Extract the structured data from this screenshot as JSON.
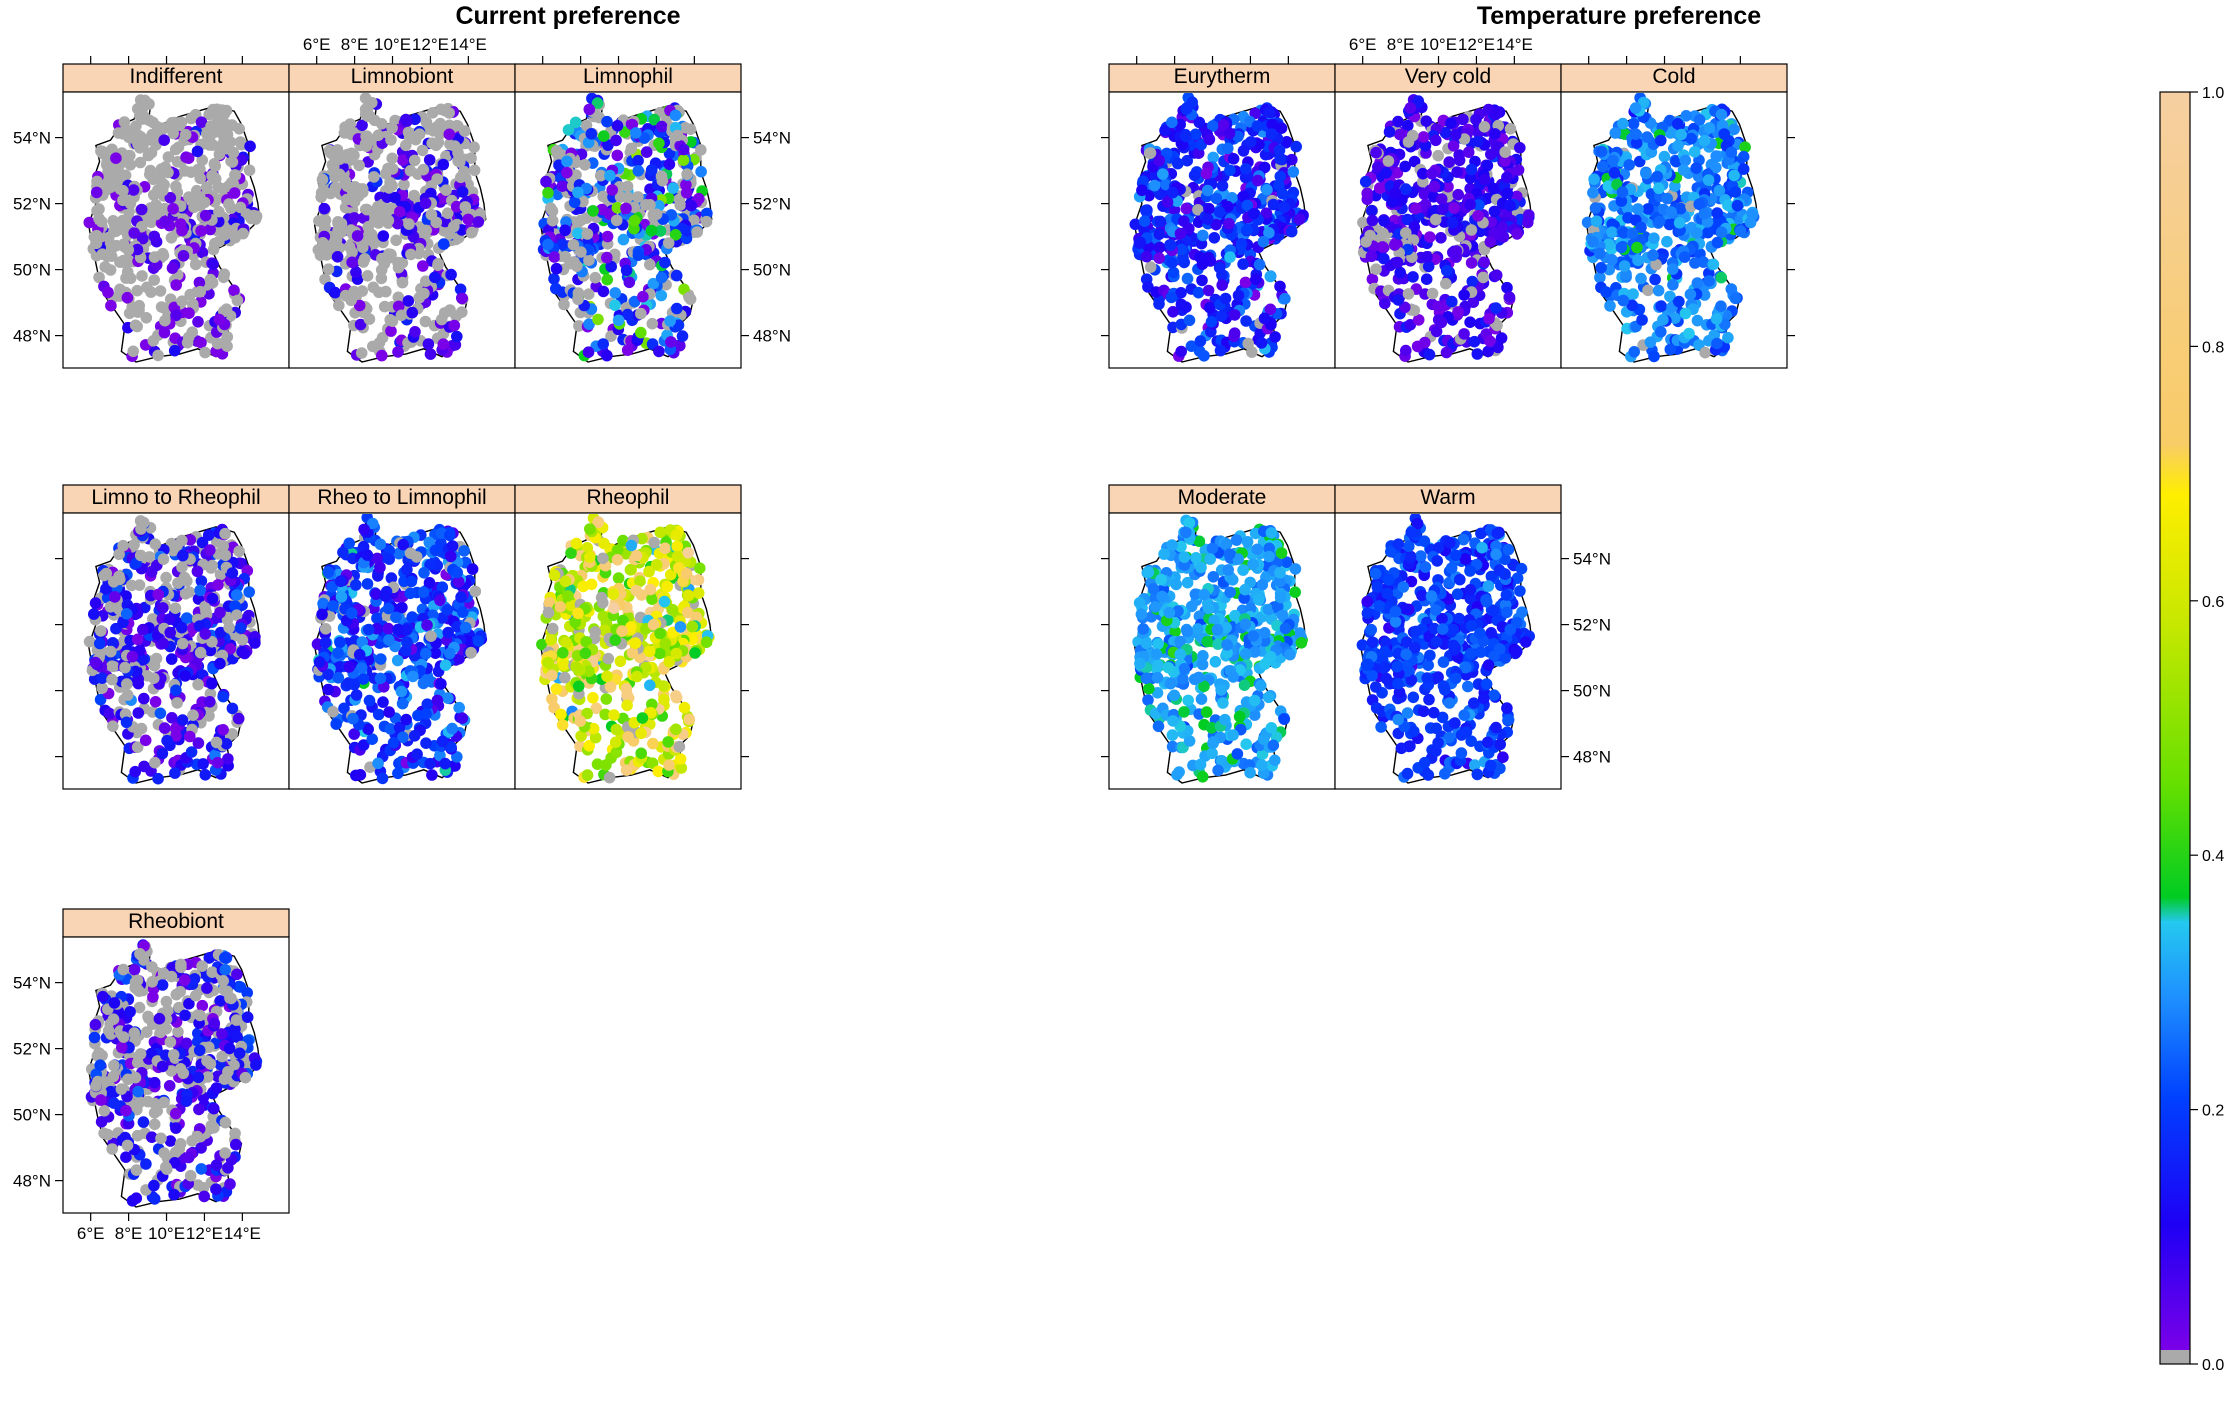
{
  "figure": {
    "groups": [
      {
        "title": "Current preference",
        "panels": [
          {
            "label": "Indifferent",
            "mean": 0.03,
            "spread": 0.05,
            "gray_share": 0.62
          },
          {
            "label": "Limnobiont",
            "mean": 0.06,
            "spread": 0.06,
            "gray_share": 0.55
          },
          {
            "label": "Limnophil",
            "mean": 0.18,
            "spread": 0.14,
            "gray_share": 0.3
          },
          {
            "label": "Limno to Rheophil",
            "mean": 0.1,
            "spread": 0.07,
            "gray_share": 0.3
          },
          {
            "label": "Rheo to Limnophil",
            "mean": 0.17,
            "spread": 0.08,
            "gray_share": 0.05
          },
          {
            "label": "Rheophil",
            "mean": 0.62,
            "spread": 0.14,
            "gray_share": 0.05
          },
          {
            "label": "Rheobiont",
            "mean": 0.1,
            "spread": 0.07,
            "gray_share": 0.4
          }
        ]
      },
      {
        "title": "Temperature preference",
        "panels": [
          {
            "label": "Eurytherm",
            "mean": 0.15,
            "spread": 0.07,
            "gray_share": 0.02
          },
          {
            "label": "Very cold",
            "mean": 0.07,
            "spread": 0.05,
            "gray_share": 0.15
          },
          {
            "label": "Cold",
            "mean": 0.26,
            "spread": 0.05,
            "gray_share": 0.03
          },
          {
            "label": "Moderate",
            "mean": 0.3,
            "spread": 0.04,
            "gray_share": 0.0
          },
          {
            "label": "Warm",
            "mean": 0.19,
            "spread": 0.05,
            "gray_share": 0.0
          }
        ]
      }
    ],
    "x_ticks": [
      "6°E",
      "8°E",
      "10°E",
      "12°E",
      "14°E"
    ],
    "x_tick_values": [
      6,
      8,
      10,
      12,
      14
    ],
    "y_ticks": [
      "48°N",
      "50°N",
      "52°N",
      "54°N"
    ],
    "y_tick_values": [
      48,
      50,
      52,
      54
    ],
    "xlim": [
      5.7,
      15.3
    ],
    "ylim": [
      47.2,
      55.2
    ],
    "colorbar": {
      "ticks": [
        "0.0",
        "0.2",
        "0.4",
        "0.6",
        "0.8",
        "1.0"
      ],
      "tick_values": [
        0.0,
        0.2,
        0.4,
        0.6,
        0.8,
        1.0
      ],
      "zero_color": "#aaaaaa",
      "stops": [
        "#7a00e8",
        "#1e00f5",
        "#0040ff",
        "#1e90ff",
        "#24c8f0",
        "#00cc22",
        "#66e000",
        "#c8e800",
        "#ffee00",
        "#f8cc66",
        "#f6cfa2"
      ],
      "stop_positions": [
        0.0,
        0.1,
        0.2,
        0.28,
        0.34,
        0.36,
        0.45,
        0.58,
        0.68,
        0.72,
        1.0
      ]
    },
    "colors": {
      "strip_fill": "#fad5b5",
      "panel_border": "#000000",
      "missing_value": "#aaaaaa"
    }
  }
}
